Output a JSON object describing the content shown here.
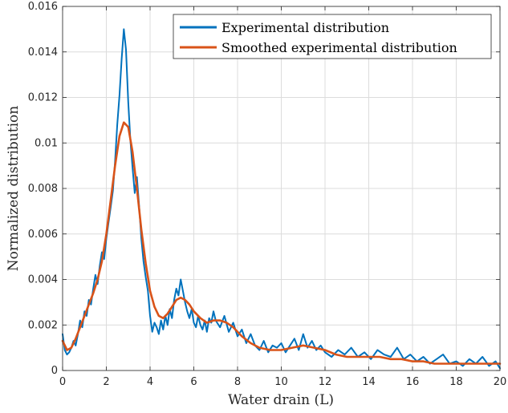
{
  "chart_data": {
    "type": "line",
    "xlabel": "Water drain (L)",
    "ylabel": "Normalized distribution",
    "xlim": [
      0,
      20
    ],
    "ylim": [
      0,
      0.016
    ],
    "xticks": [
      0,
      2,
      4,
      6,
      8,
      10,
      12,
      14,
      16,
      18,
      20
    ],
    "yticks": [
      0,
      0.002,
      0.004,
      0.006,
      0.008,
      0.01,
      0.012,
      0.014,
      0.016
    ],
    "xtick_labels": [
      "0",
      "2",
      "4",
      "6",
      "8",
      "10",
      "12",
      "14",
      "16",
      "18",
      "20"
    ],
    "ytick_labels": [
      "0",
      "0.002",
      "0.004",
      "0.006",
      "0.008",
      "0.01",
      "0.012",
      "0.014",
      "0.016"
    ],
    "grid": true,
    "legend_position": "top-right",
    "colors": {
      "experimental": "#0072BD",
      "smoothed": "#D95319"
    },
    "series": [
      {
        "name": "Experimental distribution",
        "x": [
          0,
          0.1,
          0.2,
          0.3,
          0.4,
          0.5,
          0.6,
          0.7,
          0.8,
          0.9,
          1.0,
          1.1,
          1.2,
          1.3,
          1.4,
          1.5,
          1.6,
          1.7,
          1.8,
          1.9,
          2.0,
          2.1,
          2.2,
          2.3,
          2.4,
          2.5,
          2.6,
          2.7,
          2.8,
          2.9,
          3.0,
          3.1,
          3.2,
          3.3,
          3.4,
          3.5,
          3.6,
          3.7,
          3.8,
          3.9,
          4.0,
          4.1,
          4.2,
          4.3,
          4.4,
          4.5,
          4.6,
          4.7,
          4.8,
          4.9,
          5.0,
          5.1,
          5.2,
          5.3,
          5.4,
          5.5,
          5.6,
          5.7,
          5.8,
          5.9,
          6.0,
          6.1,
          6.2,
          6.3,
          6.4,
          6.5,
          6.6,
          6.7,
          6.8,
          6.9,
          7.0,
          7.2,
          7.4,
          7.6,
          7.8,
          8.0,
          8.2,
          8.4,
          8.6,
          8.8,
          9.0,
          9.2,
          9.4,
          9.6,
          9.8,
          10.0,
          10.2,
          10.4,
          10.6,
          10.8,
          11.0,
          11.2,
          11.4,
          11.6,
          11.8,
          12.0,
          12.3,
          12.6,
          12.9,
          13.2,
          13.5,
          13.8,
          14.1,
          14.4,
          14.7,
          15.0,
          15.3,
          15.6,
          15.9,
          16.2,
          16.5,
          16.8,
          17.1,
          17.4,
          17.7,
          18.0,
          18.3,
          18.6,
          18.9,
          19.2,
          19.5,
          19.8,
          20.0
        ],
        "y": [
          0.0016,
          0.0009,
          0.0007,
          0.0008,
          0.001,
          0.0013,
          0.0011,
          0.0016,
          0.0022,
          0.0019,
          0.0026,
          0.0024,
          0.0031,
          0.0029,
          0.0036,
          0.0042,
          0.0038,
          0.0046,
          0.0052,
          0.0049,
          0.0058,
          0.0065,
          0.0072,
          0.0079,
          0.0092,
          0.0108,
          0.0121,
          0.0137,
          0.015,
          0.0141,
          0.0118,
          0.0101,
          0.0089,
          0.0078,
          0.0085,
          0.0072,
          0.0058,
          0.0048,
          0.0041,
          0.0035,
          0.0024,
          0.0017,
          0.0021,
          0.0019,
          0.0016,
          0.0022,
          0.0018,
          0.0024,
          0.002,
          0.0027,
          0.0023,
          0.0031,
          0.0036,
          0.0033,
          0.004,
          0.0035,
          0.003,
          0.0026,
          0.0023,
          0.0027,
          0.0021,
          0.0019,
          0.0024,
          0.002,
          0.0018,
          0.0022,
          0.0017,
          0.0023,
          0.0021,
          0.0026,
          0.0022,
          0.0019,
          0.0024,
          0.0017,
          0.0021,
          0.0015,
          0.0018,
          0.0012,
          0.0016,
          0.0011,
          0.0009,
          0.0013,
          0.0008,
          0.0011,
          0.001,
          0.0012,
          0.0008,
          0.0011,
          0.0014,
          0.0009,
          0.0016,
          0.001,
          0.0013,
          0.0009,
          0.0011,
          0.0008,
          0.0006,
          0.0009,
          0.0007,
          0.001,
          0.0006,
          0.0008,
          0.0005,
          0.0009,
          0.0007,
          0.0006,
          0.001,
          0.0005,
          0.0007,
          0.0004,
          0.0006,
          0.0003,
          0.0005,
          0.0007,
          0.0003,
          0.0004,
          0.0002,
          0.0005,
          0.0003,
          0.0006,
          0.0002,
          0.0004,
          0.0001
        ]
      },
      {
        "name": "Smoothed experimental distribution",
        "x": [
          0,
          0.2,
          0.4,
          0.6,
          0.8,
          1.0,
          1.2,
          1.4,
          1.6,
          1.8,
          2.0,
          2.2,
          2.4,
          2.6,
          2.8,
          3.0,
          3.2,
          3.4,
          3.6,
          3.8,
          4.0,
          4.2,
          4.4,
          4.6,
          4.8,
          5.0,
          5.2,
          5.4,
          5.6,
          5.8,
          6.0,
          6.3,
          6.6,
          6.9,
          7.2,
          7.5,
          7.8,
          8.2,
          8.6,
          9.0,
          9.5,
          10.0,
          10.5,
          11.0,
          11.5,
          12.0,
          12.5,
          13.0,
          13.5,
          14.0,
          14.5,
          15.0,
          15.5,
          16.0,
          16.5,
          17.0,
          17.5,
          18.0,
          18.5,
          19.0,
          19.5,
          20.0
        ],
        "y": [
          0.0013,
          0.0009,
          0.001,
          0.0014,
          0.0019,
          0.0024,
          0.0029,
          0.0034,
          0.004,
          0.0048,
          0.006,
          0.0075,
          0.009,
          0.0103,
          0.0109,
          0.0107,
          0.0096,
          0.008,
          0.0062,
          0.0047,
          0.0035,
          0.0028,
          0.0024,
          0.0023,
          0.0025,
          0.0028,
          0.0031,
          0.0032,
          0.0031,
          0.0029,
          0.0026,
          0.0023,
          0.0021,
          0.0022,
          0.0022,
          0.0021,
          0.0019,
          0.0015,
          0.0012,
          0.001,
          0.0009,
          0.0009,
          0.001,
          0.0011,
          0.001,
          0.0009,
          0.0007,
          0.0006,
          0.0006,
          0.0006,
          0.0006,
          0.0005,
          0.0005,
          0.0004,
          0.0004,
          0.0003,
          0.0003,
          0.0003,
          0.0003,
          0.0003,
          0.0003,
          0.0003
        ]
      }
    ]
  }
}
